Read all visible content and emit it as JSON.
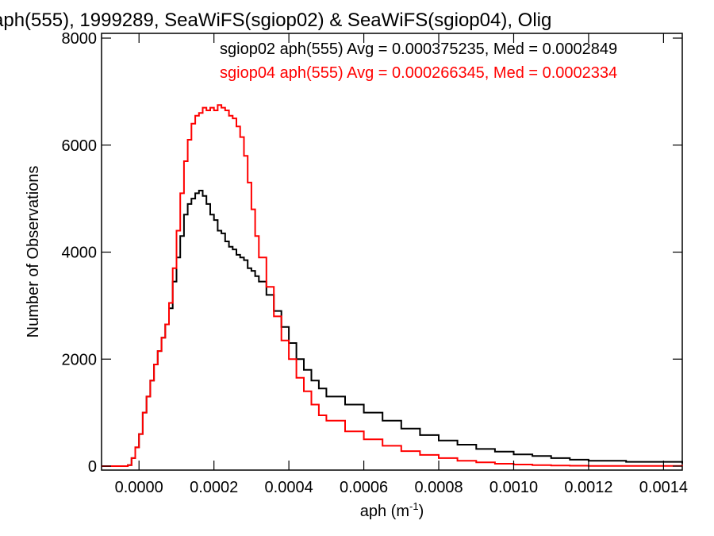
{
  "chart_data": {
    "type": "line",
    "title": "aph(555), 1999289, SeaWiFS(sgiop02) & SeaWiFS(sgiop04), Olig",
    "xlabel": "aph (m",
    "xlabel_unit_sup": "-1",
    "xlabel_close": ")",
    "ylabel": "Number of Observations",
    "xlim": [
      -0.0001,
      0.00145
    ],
    "ylim": [
      0,
      8000
    ],
    "x_ticks": [
      0.0,
      0.0002,
      0.0004,
      0.0006,
      0.0008,
      0.001,
      0.0012,
      0.0014
    ],
    "x_tick_labels": [
      "0.0000",
      "0.0002",
      "0.0004",
      "0.0006",
      "0.0008",
      "0.0010",
      "0.0012",
      "0.0014"
    ],
    "y_ticks": [
      0,
      2000,
      4000,
      6000,
      8000
    ],
    "y_tick_labels": [
      "0",
      "2000",
      "4000",
      "6000",
      "8000"
    ],
    "grid": false,
    "legend_position": "top-right",
    "series": [
      {
        "label": "sgiop02 aph(555) Avg = 0.000375235, Med = 0.0002849",
        "color": "#000000",
        "x": [
          -0.0001,
          -6e-05,
          -3e-05,
          -2e-05,
          -1e-05,
          0.0,
          1e-05,
          2e-05,
          3e-05,
          4e-05,
          5e-05,
          6e-05,
          7e-05,
          8e-05,
          9e-05,
          0.0001,
          0.00011,
          0.00012,
          0.00013,
          0.00014,
          0.00015,
          0.00016,
          0.00017,
          0.00018,
          0.00019,
          0.0002,
          0.00021,
          0.00022,
          0.00023,
          0.00024,
          0.00025,
          0.00026,
          0.00027,
          0.00028,
          0.00029,
          0.0003,
          0.00031,
          0.00032,
          0.00034,
          0.00036,
          0.00038,
          0.0004,
          0.00042,
          0.00044,
          0.00046,
          0.00048,
          0.0005,
          0.00055,
          0.0006,
          0.00065,
          0.0007,
          0.00075,
          0.0008,
          0.00085,
          0.0009,
          0.00095,
          0.001,
          0.00105,
          0.0011,
          0.00115,
          0.0012,
          0.0013,
          0.00145
        ],
        "y": [
          0,
          0,
          20,
          150,
          350,
          600,
          1000,
          1300,
          1600,
          1900,
          2150,
          2400,
          2650,
          2950,
          3450,
          3900,
          4300,
          4700,
          4900,
          5000,
          5100,
          5150,
          5050,
          4900,
          4700,
          4600,
          4400,
          4350,
          4200,
          4100,
          4050,
          3950,
          3900,
          3850,
          3700,
          3650,
          3550,
          3450,
          3200,
          2900,
          2600,
          2300,
          2000,
          1800,
          1600,
          1450,
          1300,
          1150,
          1000,
          850,
          700,
          580,
          480,
          400,
          320,
          270,
          220,
          190,
          150,
          120,
          100,
          80,
          50
        ]
      },
      {
        "label": "sgiop04 aph(555) Avg = 0.000266345, Med = 0.0002334",
        "color": "#ff0000",
        "x": [
          -0.0001,
          -6e-05,
          -3e-05,
          -2e-05,
          -1e-05,
          0.0,
          1e-05,
          2e-05,
          3e-05,
          4e-05,
          5e-05,
          6e-05,
          7e-05,
          8e-05,
          9e-05,
          0.0001,
          0.00011,
          0.00012,
          0.00013,
          0.00014,
          0.00015,
          0.00016,
          0.00017,
          0.00018,
          0.00019,
          0.0002,
          0.00021,
          0.00022,
          0.00023,
          0.00024,
          0.00025,
          0.00026,
          0.00027,
          0.00028,
          0.00029,
          0.0003,
          0.00031,
          0.00032,
          0.00034,
          0.00036,
          0.00038,
          0.0004,
          0.00042,
          0.00044,
          0.00046,
          0.00048,
          0.0005,
          0.00055,
          0.0006,
          0.00065,
          0.0007,
          0.00075,
          0.0008,
          0.00085,
          0.0009,
          0.00095,
          0.001,
          0.00105,
          0.0011,
          0.00115,
          0.0012,
          0.0013,
          0.00145
        ],
        "y": [
          0,
          0,
          20,
          150,
          350,
          600,
          1000,
          1300,
          1600,
          1900,
          2150,
          2400,
          2650,
          3050,
          3700,
          4400,
          5100,
          5700,
          6100,
          6400,
          6550,
          6600,
          6700,
          6650,
          6700,
          6650,
          6750,
          6700,
          6650,
          6550,
          6500,
          6350,
          6150,
          5800,
          5300,
          4800,
          4300,
          3900,
          3350,
          2800,
          2350,
          2000,
          1650,
          1400,
          1150,
          950,
          850,
          650,
          500,
          380,
          280,
          210,
          150,
          100,
          70,
          45,
          30,
          20,
          12,
          8,
          5,
          3,
          0
        ]
      }
    ]
  }
}
